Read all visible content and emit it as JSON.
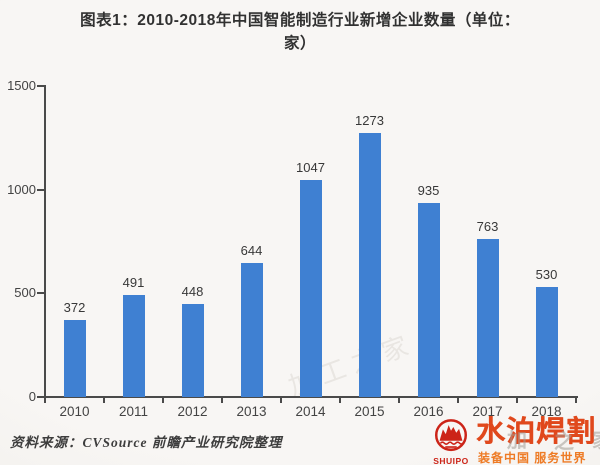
{
  "title": {
    "line1": "图表1：2010-2018年中国智能制造行业新增企业数量（单位：",
    "line2": "家）"
  },
  "chart_data": {
    "type": "bar",
    "categories": [
      "2010",
      "2011",
      "2012",
      "2013",
      "2014",
      "2015",
      "2016",
      "2017",
      "2018"
    ],
    "values": [
      372,
      491,
      448,
      644,
      1047,
      1273,
      935,
      763,
      530
    ],
    "title": "2010-2018年中国智能制造行业新增企业数量（单位：家）",
    "xlabel": "",
    "ylabel": "",
    "ylim": [
      0,
      1500
    ],
    "yticks": [
      0,
      500,
      1000,
      1500
    ],
    "bar_color": "#3f80d2",
    "axis_color": "#4a4a4a",
    "grid": false,
    "legend": "none",
    "value_labels": true
  },
  "source": {
    "text": "资料来源：CVSource 前瞻产业研究院整理"
  },
  "logo": {
    "emblem_text": "SHUIPO",
    "brand_name": "水泊焊割",
    "slogan": "装备中国 服务世界",
    "brand_color": "#e0481c",
    "emblem_color": "#cc2418",
    "slogan_color": "#ee7b25"
  },
  "watermark": {
    "text": "加工之家",
    "char1": "加",
    "char2": "之",
    "char3": "家"
  }
}
